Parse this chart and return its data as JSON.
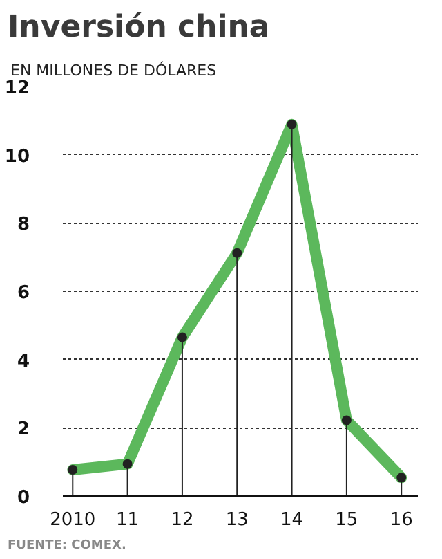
{
  "chart_data": {
    "type": "line",
    "title": "Inversión china",
    "subtitle": "EN MILLONES DE DÓLARES",
    "categories": [
      "2010",
      "11",
      "12",
      "13",
      "14",
      "15",
      "16"
    ],
    "series": [
      {
        "color": "#5cb85c",
        "values": [
          0.77,
          0.94,
          4.65,
          7.12,
          10.89,
          2.22,
          0.54
        ]
      },
      {
        "type": "lollipop",
        "color": "#222222",
        "values": [
          0.77,
          0.94,
          4.65,
          7.12,
          10.89,
          2.22,
          0.54
        ]
      }
    ],
    "ylim": [
      0,
      12
    ],
    "yticks": [
      0,
      2,
      4,
      6,
      8,
      10,
      12
    ],
    "grid": "y",
    "line_style": "solid",
    "annotations": [
      "FUENTE: COMEX."
    ]
  }
}
